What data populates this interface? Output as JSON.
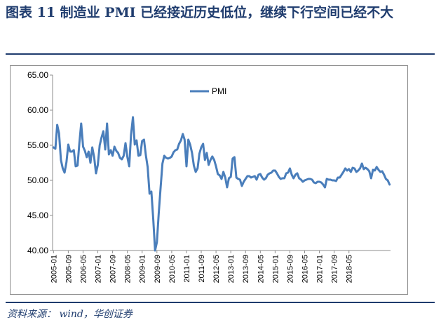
{
  "header": {
    "title": "图表 11 制造业 PMI 已经接近历史低位，继续下行空间已经不大"
  },
  "footer": {
    "source": "资料来源： wind，华创证券"
  },
  "colors": {
    "title": "#1f3c6e",
    "series": "#4a7ebb",
    "axis": "#8c8c8c"
  },
  "chart_data": {
    "type": "line",
    "title": "",
    "xlabel": "",
    "ylabel": "",
    "ylim": [
      40,
      65
    ],
    "yticks": [
      "40.00",
      "45.00",
      "50.00",
      "55.00",
      "60.00",
      "65.00"
    ],
    "xticks": [
      "2005-01",
      "2005-09",
      "2006-05",
      "2007-01",
      "2007-09",
      "2008-05",
      "2009-01",
      "2009-09",
      "2010-05",
      "2011-01",
      "2011-09",
      "2012-05",
      "2013-01",
      "2013-09",
      "2014-05",
      "2015-01",
      "2015-09",
      "2016-05",
      "2017-01",
      "2017-09",
      "2018-05"
    ],
    "grid": false,
    "legend": "top-center",
    "start": "2005-01",
    "series": [
      {
        "name": "PMI",
        "values": [
          54.7,
          54.5,
          57.9,
          56.7,
          52.9,
          51.7,
          51.1,
          52.6,
          55.1,
          54.1,
          54.1,
          54.3,
          52.0,
          52.1,
          55.3,
          58.1,
          54.8,
          54.2,
          53.3,
          54.1,
          52.5,
          54.7,
          53.3,
          51.0,
          52.2,
          55.0,
          56.1,
          57.0,
          54.4,
          58.1,
          53.7,
          54.3,
          53.5,
          54.8,
          54.2,
          53.9,
          53.2,
          53.0,
          53.5,
          55.3,
          53.3,
          52.0,
          56.5,
          59.0,
          55.1,
          55.7,
          53.5,
          53.6,
          55.6,
          55.8,
          53.6,
          51.9,
          48.1,
          48.4,
          44.6,
          38.8,
          41.2,
          45.3,
          49.0,
          52.4,
          53.5,
          53.2,
          53.1,
          53.2,
          53.4,
          54.0,
          54.3,
          54.4,
          55.2,
          55.7,
          56.6,
          55.8,
          52.0,
          55.8,
          55.1,
          53.9,
          52.1,
          51.2,
          51.7,
          53.8,
          54.7,
          55.2,
          52.9,
          53.9,
          52.2,
          52.9,
          53.4,
          52.9,
          52.0,
          50.9,
          50.7,
          50.2,
          51.2,
          50.4,
          49.0,
          50.3,
          50.5,
          53.1,
          53.3,
          50.4,
          50.2,
          50.1,
          49.2,
          49.8,
          50.2,
          50.6,
          50.6,
          50.4,
          50.5,
          50.6,
          50.1,
          50.8,
          50.9,
          50.4,
          50.1,
          50.3,
          50.8,
          51.0,
          51.1,
          51.4,
          51.4,
          51.0,
          50.5,
          50.2,
          50.3,
          50.3,
          51.0,
          51.1,
          51.7,
          50.8,
          50.3,
          50.8,
          51.0,
          50.3,
          50.1,
          49.8,
          50.0,
          50.1,
          50.2,
          50.2,
          50.1,
          49.7,
          49.6,
          49.8,
          49.8,
          49.7,
          49.4,
          49.0,
          50.2,
          50.1,
          50.1,
          50.0,
          50.0,
          49.9,
          50.4,
          50.4,
          50.8,
          51.2,
          51.7,
          51.4,
          51.6,
          51.2,
          51.8,
          51.7,
          51.2,
          51.4,
          51.7,
          52.4,
          51.6,
          51.8,
          51.6,
          51.3,
          50.3,
          51.5,
          51.4,
          51.9,
          51.5,
          51.2,
          51.3,
          50.8,
          50.2,
          50.0,
          49.4
        ]
      }
    ]
  }
}
